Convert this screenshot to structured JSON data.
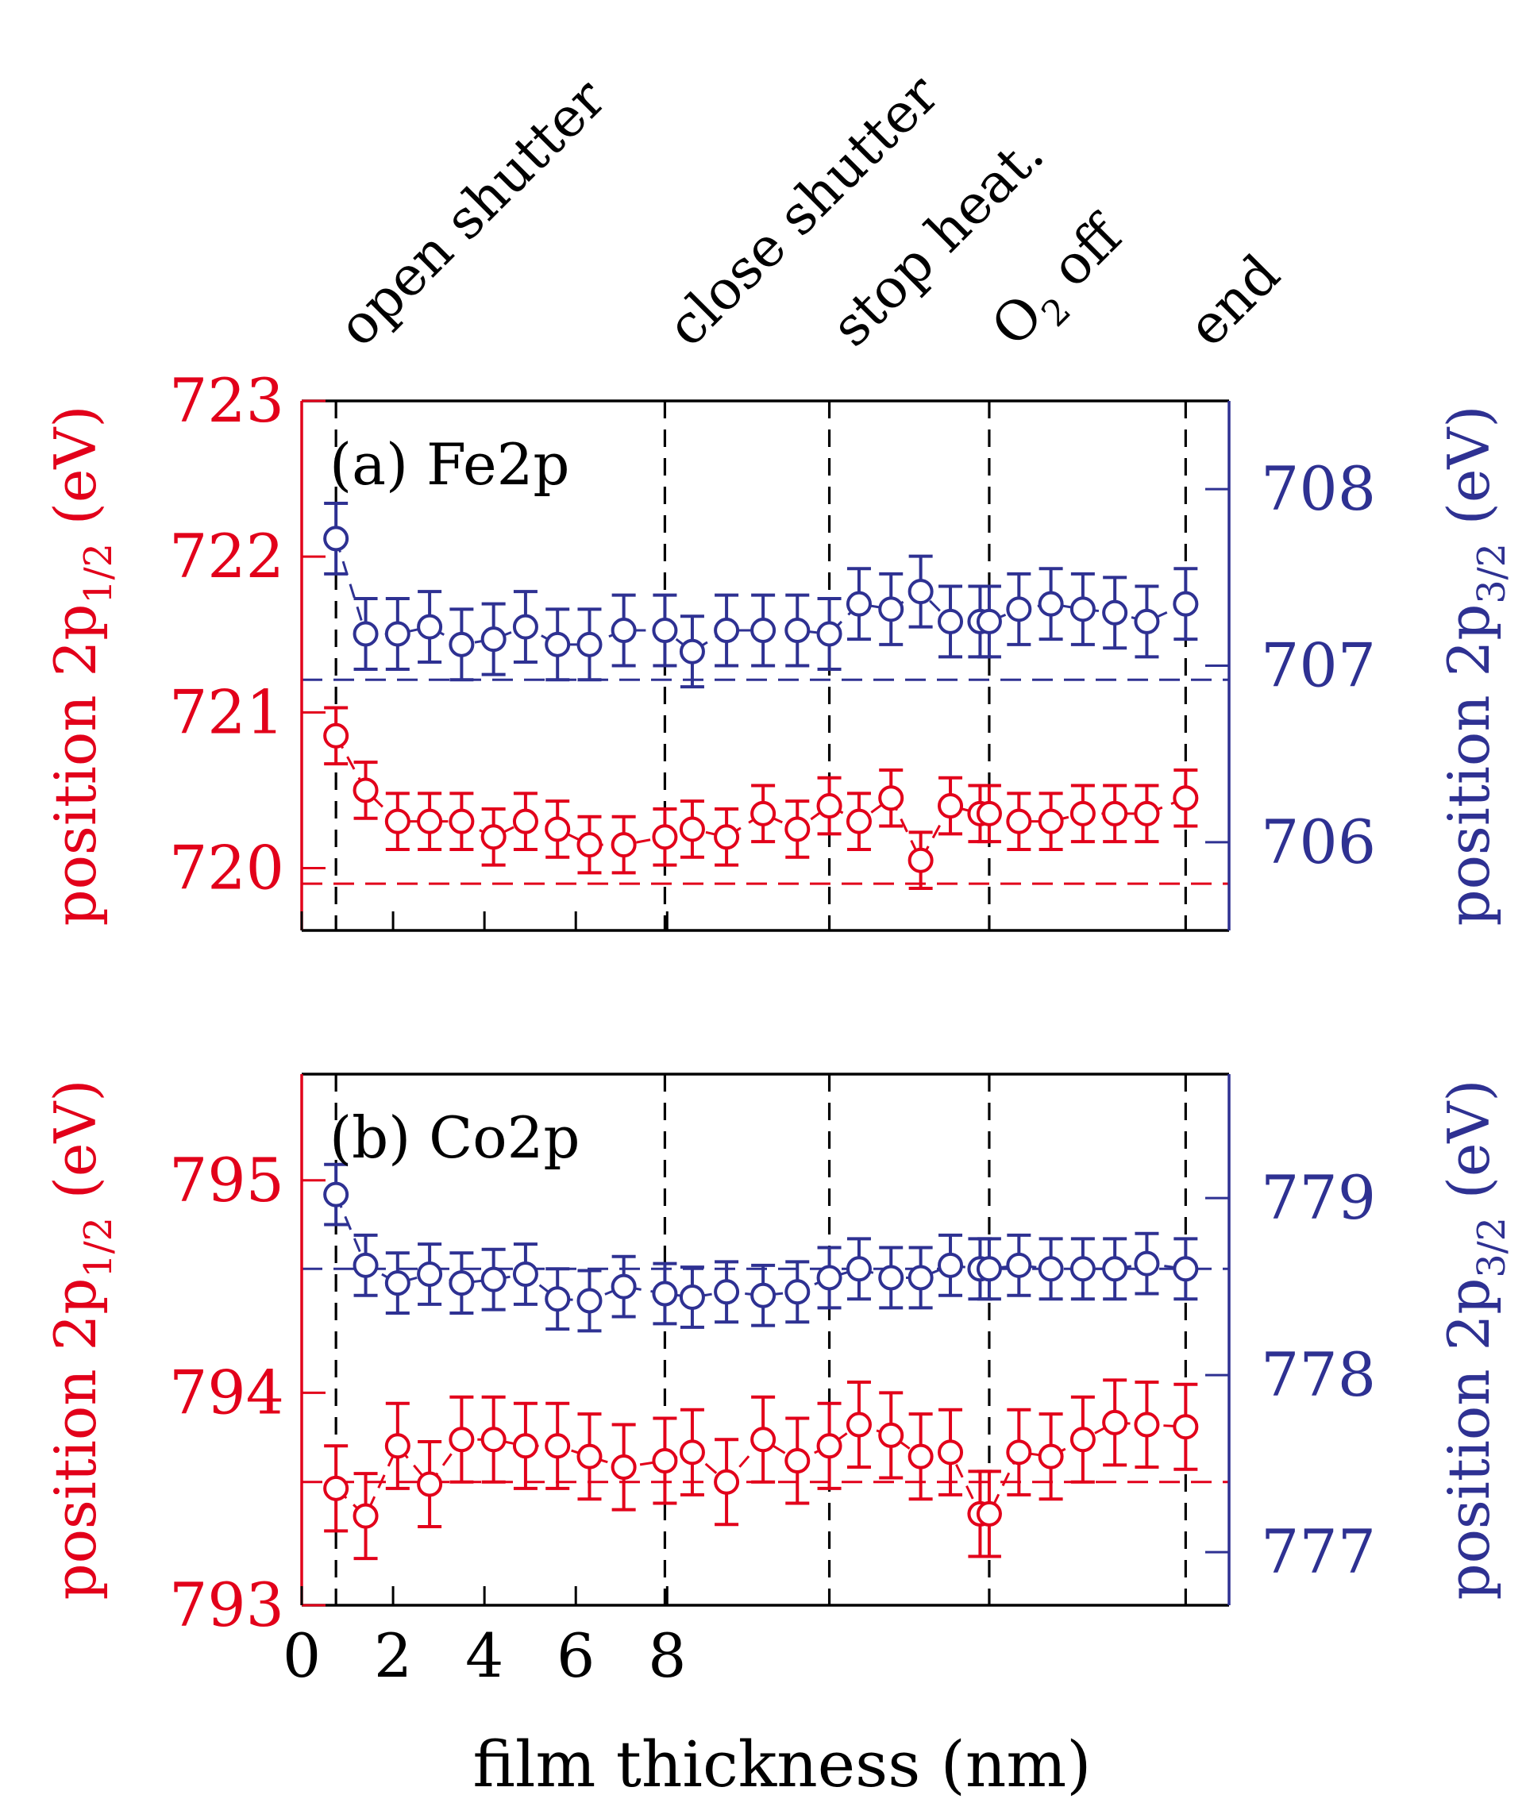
{
  "colors": {
    "red": "#e2001a",
    "blue": "#2e3192",
    "black": "#000000"
  },
  "events": [
    {
      "label": "open shutter",
      "x": 0.75
    },
    {
      "label": "close shutter",
      "x": 7.95
    },
    {
      "label": "stop heat.",
      "x": 11.55
    },
    {
      "label": "O₂ off",
      "x": 15.05
    },
    {
      "label": "end",
      "x": 19.35
    }
  ],
  "xaxis": {
    "label": "film thickness (nm)",
    "ticks": [
      0,
      2,
      4,
      6,
      8
    ],
    "range": [
      0,
      20.3
    ]
  },
  "chart_data": [
    {
      "type": "scatter",
      "title": "(a) Fe2p",
      "x": [
        0.75,
        1.4,
        2.1,
        2.8,
        3.5,
        4.2,
        4.9,
        5.6,
        6.3,
        7.05,
        7.95,
        8.55,
        9.3,
        10.1,
        10.85,
        11.55,
        12.2,
        12.9,
        13.55,
        14.2,
        14.85,
        15.05,
        15.7,
        16.4,
        17.1,
        17.8,
        18.5,
        19.35
      ],
      "series": [
        {
          "name": "2p1/2",
          "axis": "left",
          "color": "#e2001a",
          "values": [
            720.85,
            720.5,
            720.3,
            720.3,
            720.3,
            720.2,
            720.3,
            720.25,
            720.15,
            720.15,
            720.2,
            720.25,
            720.2,
            720.35,
            720.25,
            720.4,
            720.3,
            720.45,
            720.05,
            720.4,
            720.35,
            720.35,
            720.3,
            720.3,
            720.35,
            720.35,
            720.35,
            720.45
          ],
          "error": 0.18,
          "reference": 719.9
        },
        {
          "name": "2p3/2",
          "axis": "right",
          "color": "#2e3192",
          "values": [
            707.72,
            707.18,
            707.18,
            707.22,
            707.12,
            707.15,
            707.22,
            707.12,
            707.12,
            707.2,
            707.2,
            707.08,
            707.2,
            707.2,
            707.2,
            707.18,
            707.35,
            707.32,
            707.42,
            707.25,
            707.25,
            707.25,
            707.32,
            707.35,
            707.32,
            707.3,
            707.25,
            707.35
          ],
          "error": 0.2,
          "reference": 706.92
        }
      ],
      "ylabel_left": "position 2p1/2 (eV)",
      "ylabel_right": "position 2p3/2 (eV)",
      "ylim_left": [
        719.6,
        723.0
      ],
      "ylim_right": [
        705.5,
        708.5
      ],
      "yticks_left": [
        720,
        721,
        722,
        723
      ],
      "yticks_right": [
        706,
        707,
        708
      ]
    },
    {
      "type": "scatter",
      "title": "(b) Co2p",
      "x": [
        0.75,
        1.4,
        2.1,
        2.8,
        3.5,
        4.2,
        4.9,
        5.6,
        6.3,
        7.05,
        7.95,
        8.55,
        9.3,
        10.1,
        10.85,
        11.55,
        12.2,
        12.9,
        13.55,
        14.2,
        14.85,
        15.05,
        15.7,
        16.4,
        17.1,
        17.8,
        18.5,
        19.35
      ],
      "series": [
        {
          "name": "2p1/2",
          "axis": "left",
          "color": "#e2001a",
          "values": [
            793.55,
            793.42,
            793.75,
            793.57,
            793.78,
            793.78,
            793.75,
            793.75,
            793.7,
            793.65,
            793.68,
            793.72,
            793.58,
            793.78,
            793.68,
            793.75,
            793.85,
            793.8,
            793.7,
            793.72,
            793.43,
            793.43,
            793.72,
            793.7,
            793.78,
            793.86,
            793.85,
            793.84
          ],
          "error": 0.2,
          "reference": 793.58
        },
        {
          "name": "2p3/2",
          "axis": "right",
          "color": "#2e3192",
          "values": [
            779.02,
            778.62,
            778.52,
            778.57,
            778.52,
            778.54,
            778.57,
            778.43,
            778.42,
            778.5,
            778.46,
            778.44,
            778.47,
            778.45,
            778.47,
            778.55,
            778.6,
            778.55,
            778.55,
            778.62,
            778.6,
            778.6,
            778.62,
            778.6,
            778.6,
            778.6,
            778.63,
            778.6
          ],
          "error": 0.17,
          "reference": 778.6
        }
      ],
      "ylabel_left": "position 2p1/2 (eV)",
      "ylabel_right": "position 2p3/2 (eV)",
      "ylim_left": [
        793.0,
        795.5
      ],
      "ylim_right": [
        776.7,
        779.7
      ],
      "yticks_left": [
        793,
        794,
        795
      ],
      "yticks_right": [
        777,
        778,
        779
      ]
    }
  ]
}
